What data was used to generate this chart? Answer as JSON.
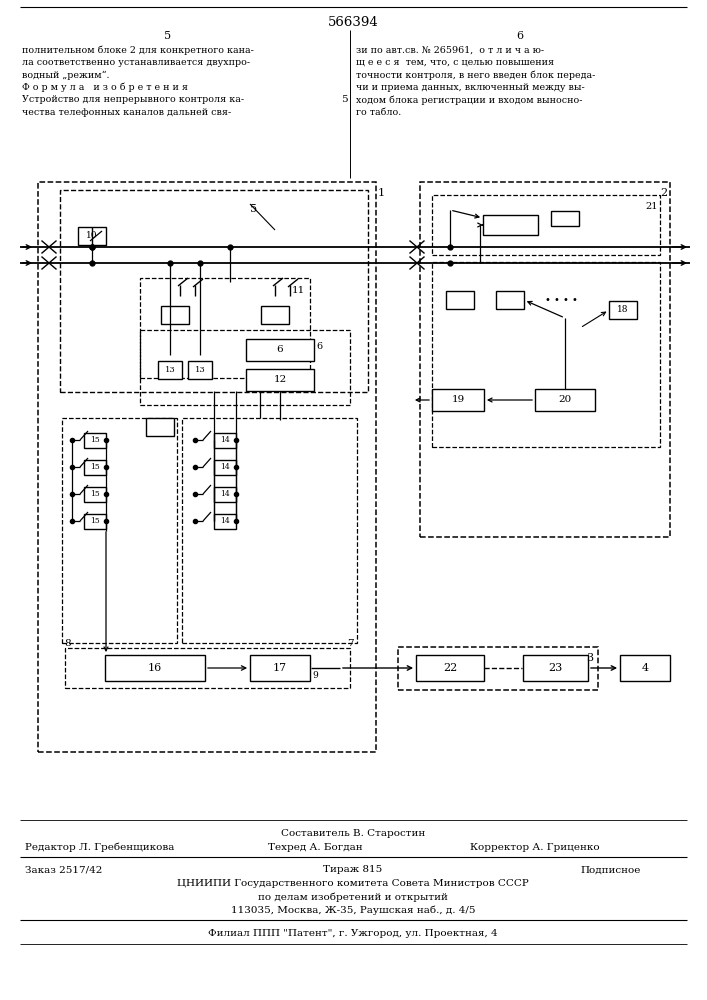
{
  "bg_color": "#ffffff",
  "title": "566394",
  "page_numbers": [
    "5",
    "6"
  ],
  "left_text": [
    "полнительном блоке 2 для конкретного кана-",
    "ла соответственно устанавливается двухпро-",
    "водный „режим“.",
    "Ф о р м у л а   и з о б р е т е н и я",
    "Устройство для непрерывного контроля ка-",
    "чества телефонных каналов дальней свя-"
  ],
  "right_text": [
    "зи по авт.св. № 265961,  о т л и ч а ю-",
    "щ е е с я  тем, что, с целью повышения",
    "точности контроля, в него введен блок переда-",
    "чи и приема данных, включенный между вы-",
    "ходом блока регистрации и входом выносно-",
    "го табло."
  ],
  "footer_line1": "Составитель В. Старостин",
  "footer_line2_left": "Редактор Л. Гребенщикова",
  "footer_line2_mid": "Техред А. Богдан",
  "footer_line2_right": "Корректор А. Гриценко",
  "footer_line3_left": "Заказ 2517/42",
  "footer_line3_mid": "Тираж 815",
  "footer_line3_right": "Подписное",
  "footer_line4": "ЦНИИПИ Государственного комитета Совета Министров СССР",
  "footer_line5": "по делам изобретений и открытий",
  "footer_line6": "113035, Москва, Ж-35, Раушская наб., д. 4/5",
  "footer_line7": "Филиал ППП \"Патент\", г. Ужгород, ул. Проектная, 4"
}
